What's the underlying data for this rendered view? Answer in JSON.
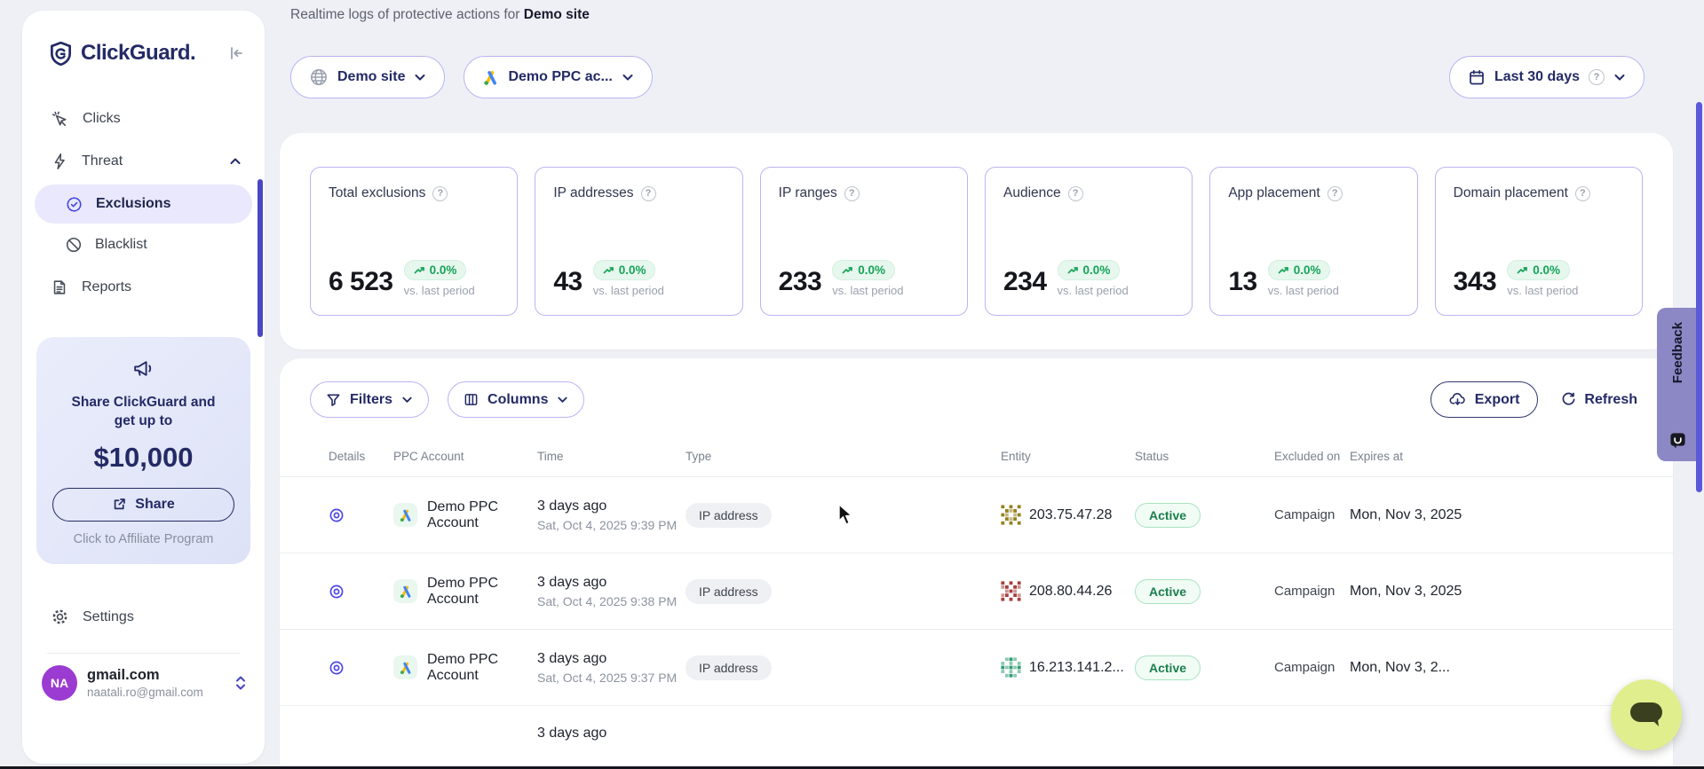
{
  "colors": {
    "accent": "#4744e0",
    "brand_navy": "#242a66",
    "positive_green": "#17a357",
    "active_green": "#1b7f4c",
    "selected_bg": "#e9e8fc",
    "feedback_bg": "#8c88c5",
    "chat_bg": "#e1ee8e"
  },
  "sidebar": {
    "logo": "ClickGuard.",
    "nav": {
      "clicks": "Clicks",
      "threat": "Threat",
      "exclusions": "Exclusions",
      "blacklist": "Blacklist",
      "reports": "Reports",
      "settings": "Settings"
    },
    "promo": {
      "line1": "Share ClickGuard and get up to",
      "amount": "$10,000",
      "share_label": "Share",
      "affiliate_label": "Click to Affiliate Program"
    },
    "user": {
      "initials": "NA",
      "name": "gmail.com",
      "email": "naatali.ro@gmail.com"
    }
  },
  "header": {
    "subtitle_prefix": "Realtime logs of protective actions for ",
    "subtitle_site": "Demo site",
    "site_selector": "Demo site",
    "account_selector": "Demo PPC ac...",
    "date_range": "Last 30 days"
  },
  "stats": {
    "compare_label": "vs. last period",
    "cards": [
      {
        "title": "Total exclusions",
        "value": "6 523",
        "delta": "0.0%"
      },
      {
        "title": "IP addresses",
        "value": "43",
        "delta": "0.0%"
      },
      {
        "title": "IP ranges",
        "value": "233",
        "delta": "0.0%"
      },
      {
        "title": "Audience",
        "value": "234",
        "delta": "0.0%"
      },
      {
        "title": "App placement",
        "value": "13",
        "delta": "0.0%"
      },
      {
        "title": "Domain placement",
        "value": "343",
        "delta": "0.0%"
      }
    ]
  },
  "toolbar": {
    "filters": "Filters",
    "columns": "Columns",
    "export": "Export",
    "refresh": "Refresh"
  },
  "table": {
    "headers": {
      "details": "Details",
      "ppc_account": "PPC Account",
      "time": "Time",
      "type": "Type",
      "entity": "Entity",
      "status": "Status",
      "excluded_on": "Excluded on",
      "expires_at": "Expires at"
    },
    "rows": [
      {
        "account": "Demo PPC Account",
        "time_rel": "3 days ago",
        "time_abs": "Sat, Oct 4, 2025 9:39 PM",
        "type": "IP address",
        "entity": "203.75.47.28",
        "entity_icon_color": "#97811e",
        "status": "Active",
        "excluded_on": "Campaign",
        "expires_at": "Mon, Nov 3, 2025"
      },
      {
        "account": "Demo PPC Account",
        "time_rel": "3 days ago",
        "time_abs": "Sat, Oct 4, 2025 9:38 PM",
        "type": "IP address",
        "entity": "208.80.44.26",
        "entity_icon_color": "#a8403c",
        "status": "Active",
        "excluded_on": "Campaign",
        "expires_at": "Mon, Nov 3, 2025"
      },
      {
        "account": "Demo PPC Account",
        "time_rel": "3 days ago",
        "time_abs": "Sat, Oct 4, 2025 9:37 PM",
        "type": "IP address",
        "entity": "16.213.141.2...",
        "entity_icon_color": "#2d9c74",
        "status": "Active",
        "excluded_on": "Campaign",
        "expires_at": "Mon, Nov 3, 2..."
      },
      {
        "time_rel": "3 days ago"
      }
    ]
  },
  "feedback_tab": "Feedback"
}
